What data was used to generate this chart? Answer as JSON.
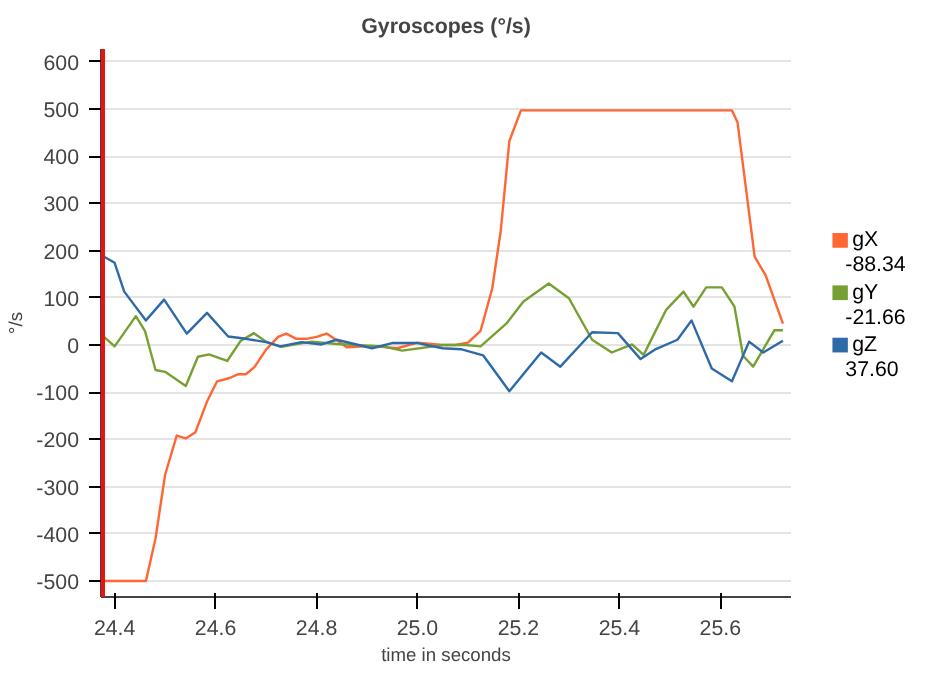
{
  "chart_data": {
    "type": "line",
    "title": "Gyroscopes (°/s)",
    "xlabel": "time in seconds",
    "ylabel": "°/s",
    "xlim": [
      24.373,
      25.74
    ],
    "ylim": [
      -534,
      627
    ],
    "xticks": [
      24.4,
      24.6,
      24.8,
      {
        "value": 25.0,
        "label": "25.0"
      },
      25.2,
      25.4,
      25.6
    ],
    "yticks": [
      -500,
      -400,
      -300,
      -200,
      -100,
      0,
      100,
      200,
      300,
      400,
      500,
      600
    ],
    "grid": "y",
    "legend": "right",
    "line_style": "solid",
    "marker": "none",
    "annotations": [
      "-88.34",
      "-21.66",
      "37.60"
    ],
    "ref_lines": [
      {
        "axis": "x",
        "value": 24.375,
        "color": "#ee1111"
      }
    ],
    "series": [
      {
        "name": "gX",
        "color": "#ff6633",
        "x": [
          24.374,
          24.462,
          24.481,
          24.5,
          24.523,
          24.541,
          24.56,
          24.583,
          24.603,
          24.628,
          24.645,
          24.66,
          24.677,
          24.7,
          24.724,
          24.74,
          24.76,
          24.78,
          24.8,
          24.82,
          24.84,
          24.86,
          24.91,
          24.96,
          25.0,
          25.05,
          25.075,
          25.1,
          25.125,
          25.148,
          25.165,
          25.182,
          25.205,
          25.623,
          25.634,
          25.65,
          25.668,
          25.69,
          25.724
        ],
        "values": [
          -500,
          -500,
          -410,
          -275,
          -192,
          -198,
          -185,
          -120,
          -77,
          -70,
          -62,
          -62,
          -47,
          -10,
          17,
          24,
          13,
          13,
          17,
          24,
          10,
          -5,
          -2,
          -7,
          5,
          0,
          0,
          5,
          30,
          119,
          242,
          432,
          497,
          497,
          472,
          338,
          187,
          147,
          45
        ]
      },
      {
        "name": "gY",
        "color": "#77a033",
        "x": [
          24.374,
          24.4,
          24.442,
          24.46,
          24.481,
          24.5,
          24.541,
          24.565,
          24.587,
          24.623,
          24.65,
          24.676,
          24.7,
          24.73,
          24.79,
          24.84,
          24.93,
          24.97,
          25.05,
          25.095,
          25.125,
          25.176,
          25.21,
          25.26,
          25.3,
          25.346,
          25.385,
          25.425,
          25.448,
          25.493,
          25.527,
          25.547,
          25.572,
          25.603,
          25.628,
          25.645,
          25.665,
          25.707,
          25.724
        ],
        "values": [
          22,
          -3,
          61,
          30,
          -53,
          -57,
          -87,
          -25,
          -20,
          -34,
          9,
          25,
          7,
          -4,
          7,
          2,
          -3,
          -12,
          0,
          0,
          -3,
          45,
          92,
          130,
          99,
          11,
          -16,
          1,
          -21,
          75,
          113,
          81,
          122,
          122,
          81,
          -23,
          -46,
          31,
          31
        ]
      },
      {
        "name": "gZ",
        "color": "#2f6aa8",
        "x": [
          24.374,
          24.4,
          24.419,
          24.462,
          24.498,
          24.543,
          24.583,
          24.625,
          24.66,
          24.7,
          24.728,
          24.77,
          24.81,
          24.84,
          24.91,
          24.95,
          25.0,
          25.05,
          25.086,
          25.13,
          25.182,
          25.245,
          25.283,
          25.346,
          25.397,
          25.442,
          25.47,
          25.515,
          25.543,
          25.583,
          25.623,
          25.657,
          25.685,
          25.724
        ],
        "values": [
          190,
          174,
          113,
          52,
          96,
          24,
          68,
          18,
          13,
          6,
          -3,
          6,
          1,
          11,
          -7,
          4,
          4,
          -7,
          -9,
          -22,
          -98,
          -16,
          -46,
          27,
          25,
          -30,
          -10,
          11,
          52,
          -50,
          -77,
          7,
          -16,
          9
        ]
      }
    ]
  }
}
